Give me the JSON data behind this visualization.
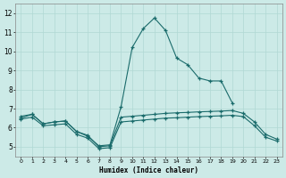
{
  "title": "",
  "xlabel": "Humidex (Indice chaleur)",
  "ylabel": "",
  "bg_color": "#cceae7",
  "line_color": "#1a6b6b",
  "grid_color": "#b0d8d4",
  "xlim": [
    -0.5,
    23.5
  ],
  "ylim": [
    4.5,
    12.5
  ],
  "xticks": [
    0,
    1,
    2,
    3,
    4,
    5,
    6,
    7,
    8,
    9,
    10,
    11,
    12,
    13,
    14,
    15,
    16,
    17,
    18,
    19,
    20,
    21,
    22,
    23
  ],
  "yticks": [
    5,
    6,
    7,
    8,
    9,
    10,
    11,
    12
  ],
  "series": [
    {
      "x": [
        0,
        1,
        2,
        3,
        4,
        5,
        6,
        7,
        8,
        9,
        10,
        11,
        12,
        13,
        14,
        15,
        16,
        17,
        18,
        19,
        20,
        21,
        22,
        23
      ],
      "y": [
        6.5,
        6.7,
        6.2,
        6.3,
        6.35,
        5.8,
        5.55,
        5.05,
        5.1,
        7.1,
        10.2,
        11.2,
        11.75,
        11.1,
        9.65,
        9.3,
        8.6,
        8.45,
        8.45,
        7.3,
        null,
        null,
        null,
        null
      ]
    },
    {
      "x": [
        0,
        1,
        2,
        3,
        4,
        5,
        6,
        7,
        8,
        9,
        10,
        11,
        12,
        13,
        14,
        15,
        16,
        17,
        18,
        19,
        20,
        21,
        22,
        23
      ],
      "y": [
        6.6,
        6.7,
        6.2,
        6.3,
        6.35,
        5.8,
        5.6,
        5.0,
        5.05,
        6.55,
        6.6,
        6.65,
        6.7,
        6.75,
        6.78,
        6.8,
        6.83,
        6.85,
        6.87,
        6.9,
        6.75,
        6.3,
        5.65,
        5.4
      ]
    },
    {
      "x": [
        0,
        1,
        2,
        3,
        4,
        5,
        6,
        7,
        8,
        9,
        10,
        11,
        12,
        13,
        14,
        15,
        16,
        17,
        18,
        19,
        20,
        21,
        22,
        23
      ],
      "y": [
        6.45,
        6.55,
        6.1,
        6.15,
        6.2,
        5.65,
        5.45,
        4.9,
        4.95,
        6.3,
        6.35,
        6.4,
        6.45,
        6.5,
        6.52,
        6.55,
        6.58,
        6.6,
        6.62,
        6.65,
        6.58,
        6.1,
        5.5,
        5.3
      ]
    }
  ]
}
